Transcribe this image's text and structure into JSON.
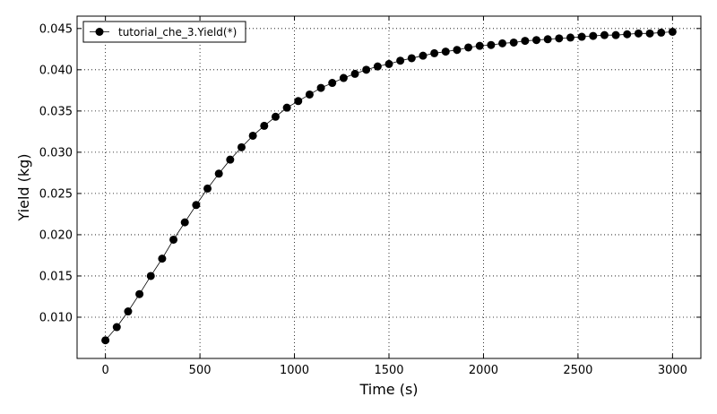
{
  "chart_data": {
    "type": "line",
    "xlabel": "Time (s)",
    "ylabel": "Yield (kg)",
    "xlim": [
      -150,
      3150
    ],
    "ylim": [
      0.005,
      0.0465
    ],
    "xticks": [
      0,
      500,
      1000,
      1500,
      2000,
      2500,
      3000
    ],
    "xtick_labels": [
      "0",
      "500",
      "1000",
      "1500",
      "2000",
      "2500",
      "3000"
    ],
    "yticks": [
      0.01,
      0.015,
      0.02,
      0.025,
      0.03,
      0.035,
      0.04,
      0.045
    ],
    "ytick_labels": [
      "0.010",
      "0.015",
      "0.020",
      "0.025",
      "0.030",
      "0.035",
      "0.040",
      "0.045"
    ],
    "grid": true,
    "legend_position": "top-left",
    "series": [
      {
        "name": "tutorial_che_3.Yield(*)",
        "color": "#000000",
        "marker": "circle",
        "x": [
          0,
          60,
          120,
          180,
          240,
          300,
          360,
          420,
          480,
          540,
          600,
          660,
          720,
          780,
          840,
          900,
          960,
          1020,
          1080,
          1140,
          1200,
          1260,
          1320,
          1380,
          1440,
          1500,
          1560,
          1620,
          1680,
          1740,
          1800,
          1860,
          1920,
          1980,
          2040,
          2100,
          2160,
          2220,
          2280,
          2340,
          2400,
          2460,
          2520,
          2580,
          2640,
          2700,
          2760,
          2820,
          2880,
          2940,
          3000
        ],
        "y": [
          0.0072,
          0.0088,
          0.0107,
          0.0128,
          0.015,
          0.0171,
          0.0194,
          0.0215,
          0.0236,
          0.0256,
          0.0274,
          0.0291,
          0.0306,
          0.032,
          0.0332,
          0.0343,
          0.0354,
          0.0362,
          0.037,
          0.0378,
          0.0384,
          0.039,
          0.0395,
          0.04,
          0.0404,
          0.0407,
          0.0411,
          0.0414,
          0.0417,
          0.042,
          0.0422,
          0.0424,
          0.0427,
          0.0429,
          0.043,
          0.0432,
          0.0433,
          0.0435,
          0.0436,
          0.0437,
          0.0438,
          0.0439,
          0.044,
          0.0441,
          0.0442,
          0.0442,
          0.0443,
          0.0444,
          0.0444,
          0.0445,
          0.0446
        ]
      }
    ]
  }
}
